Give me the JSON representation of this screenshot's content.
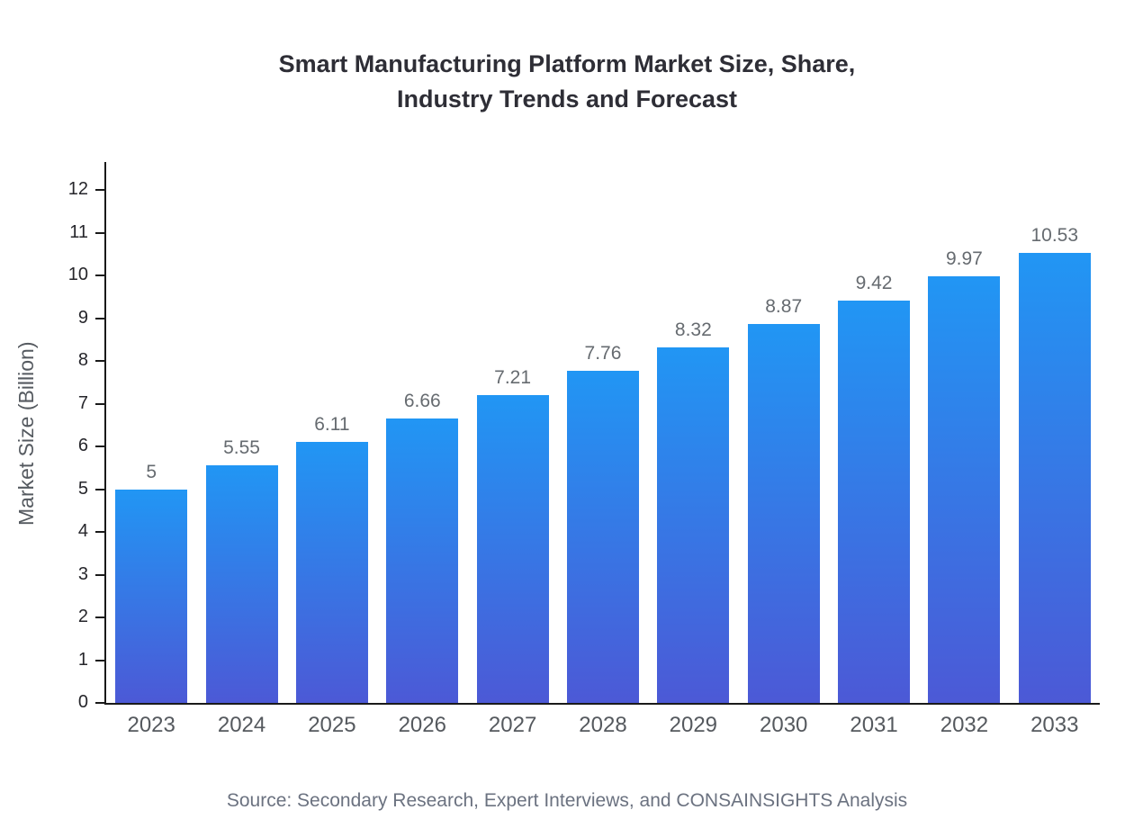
{
  "title": {
    "line1": "Smart Manufacturing Platform Market Size, Share,",
    "line2": "Industry Trends and Forecast"
  },
  "source": "Source: Secondary Research, Expert Interviews, and CONSAINSIGHTS Analysis",
  "chart_data": {
    "type": "bar",
    "title": "Smart Manufacturing Platform Market Size, Share, Industry Trends and Forecast",
    "categories": [
      "2023",
      "2024",
      "2025",
      "2026",
      "2027",
      "2028",
      "2029",
      "2030",
      "2031",
      "2032",
      "2033"
    ],
    "values": [
      5,
      5.55,
      6.11,
      6.66,
      7.21,
      7.76,
      8.32,
      8.87,
      9.42,
      9.97,
      10.53
    ],
    "value_labels": [
      "5",
      "5.55",
      "6.11",
      "6.66",
      "7.21",
      "7.76",
      "8.32",
      "8.87",
      "9.42",
      "9.97",
      "10.53"
    ],
    "xlabel": "",
    "ylabel": "Market Size (Billion)",
    "ylim": [
      0,
      12
    ],
    "ytick_step": 1,
    "yticks": [
      0,
      1,
      2,
      3,
      4,
      5,
      6,
      7,
      8,
      9,
      10,
      11,
      12
    ],
    "grid": false,
    "legend": "none",
    "bar_color_top": "#2196f4",
    "bar_color_bottom": "#4c59d6",
    "axis_color": "#1a1a1a",
    "value_label_color": "#666b70",
    "tick_label_color": "#26262b",
    "category_label_color": "#55595e"
  }
}
